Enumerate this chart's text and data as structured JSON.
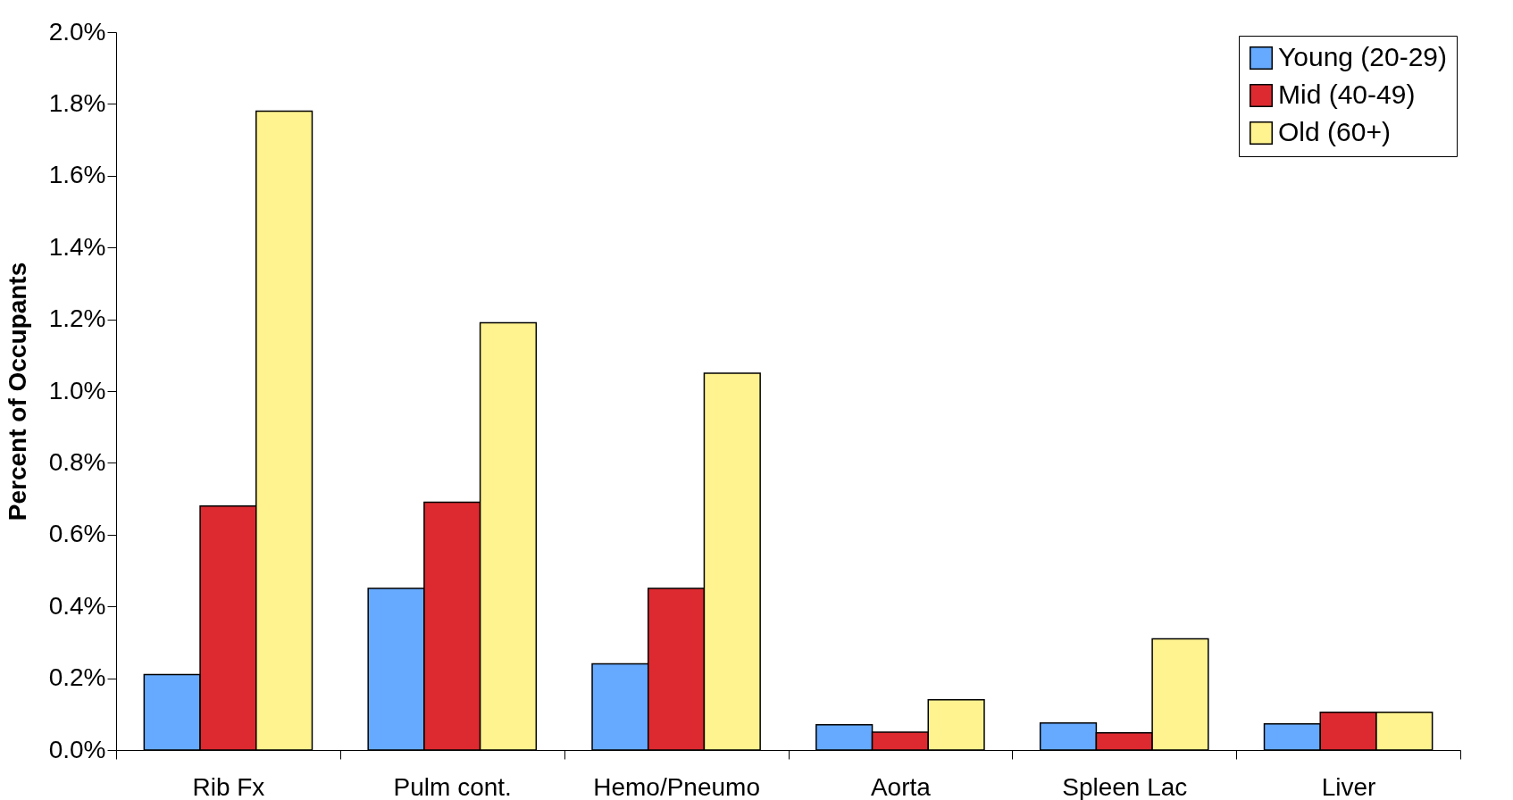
{
  "chart_data": {
    "type": "bar",
    "ylabel": "Percent of Occupants",
    "categories": [
      "Rib Fx",
      "Pulm cont.",
      "Hemo/Pneumo",
      "Aorta",
      "Spleen Lac",
      "Liver"
    ],
    "series": [
      {
        "name": "Young (20-29)",
        "color": "#66aaff",
        "values": [
          0.21,
          0.45,
          0.24,
          0.07,
          0.075,
          0.073
        ]
      },
      {
        "name": "Mid (40-49)",
        "color": "#dd2a30",
        "values": [
          0.68,
          0.69,
          0.45,
          0.05,
          0.048,
          0.105
        ]
      },
      {
        "name": "Old (60+)",
        "color": "#fff38f",
        "values": [
          1.78,
          1.19,
          1.05,
          0.14,
          0.31,
          0.105
        ]
      }
    ],
    "ylim": [
      0,
      2
    ],
    "yticks": [
      {
        "value": 0,
        "label": "0.0%"
      },
      {
        "value": 0.2,
        "label": "0.2%"
      },
      {
        "value": 0.4,
        "label": "0.4%"
      },
      {
        "value": 0.6,
        "label": "0.6%"
      },
      {
        "value": 0.8,
        "label": "0.8%"
      },
      {
        "value": 1.0,
        "label": "1.0%"
      },
      {
        "value": 1.2,
        "label": "1.2%"
      },
      {
        "value": 1.4,
        "label": "1.4%"
      },
      {
        "value": 1.6,
        "label": "1.6%"
      },
      {
        "value": 1.8,
        "label": "1.8%"
      },
      {
        "value": 2.0,
        "label": "2.0%"
      }
    ],
    "grid": false,
    "legend": "top right"
  }
}
